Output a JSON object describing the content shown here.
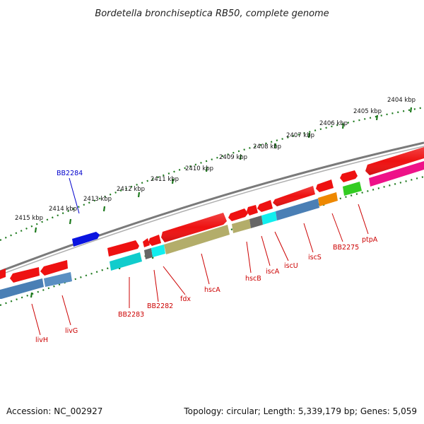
{
  "title": "Bordetella bronchiseptica RB50, complete genome",
  "footer": {
    "accession": "Accession: NC_002927",
    "summary": "Topology: circular; Length: 5,339,179 bp; Genes: 5,059"
  },
  "colors": {
    "backbone": "#7a7a7a",
    "tick": "#1e7a1e",
    "label_red": "#cc0000",
    "label_blue": "#0000cc",
    "red_gene": "#ee1111",
    "steelblue_gene": "#4a7fb5",
    "khaki_gene": "#b3ad6a",
    "cyan_gene": "#11cccc",
    "aqua_gene": "#11eeee",
    "grey_gene": "#666666",
    "orange_gene": "#ee8800",
    "green_gene": "#33cc22",
    "magenta_gene": "#ee1188",
    "blue_gene": "#0a14e0"
  },
  "kbp_labels": [
    "2404 kbp",
    "2405 kbp",
    "2406 kbp",
    "2407 kbp",
    "2408 kbp",
    "2409 kbp",
    "2410 kbp",
    "2411 kbp",
    "2412 kbp",
    "2413 kbp",
    "2414 kbp",
    "2415 kbp"
  ],
  "gene_labels": [
    {
      "text": "BB2284",
      "color": "blue"
    },
    {
      "text": "livH",
      "color": "red"
    },
    {
      "text": "livG",
      "color": "red"
    },
    {
      "text": "BB2283",
      "color": "red"
    },
    {
      "text": "BB2282",
      "color": "red"
    },
    {
      "text": "fdx",
      "color": "red"
    },
    {
      "text": "hscA",
      "color": "red"
    },
    {
      "text": "hscB",
      "color": "red"
    },
    {
      "text": "iscA",
      "color": "red"
    },
    {
      "text": "iscU",
      "color": "red"
    },
    {
      "text": "iscS",
      "color": "red"
    },
    {
      "text": "BB2275",
      "color": "red"
    },
    {
      "text": "ptpA",
      "color": "red"
    }
  ]
}
